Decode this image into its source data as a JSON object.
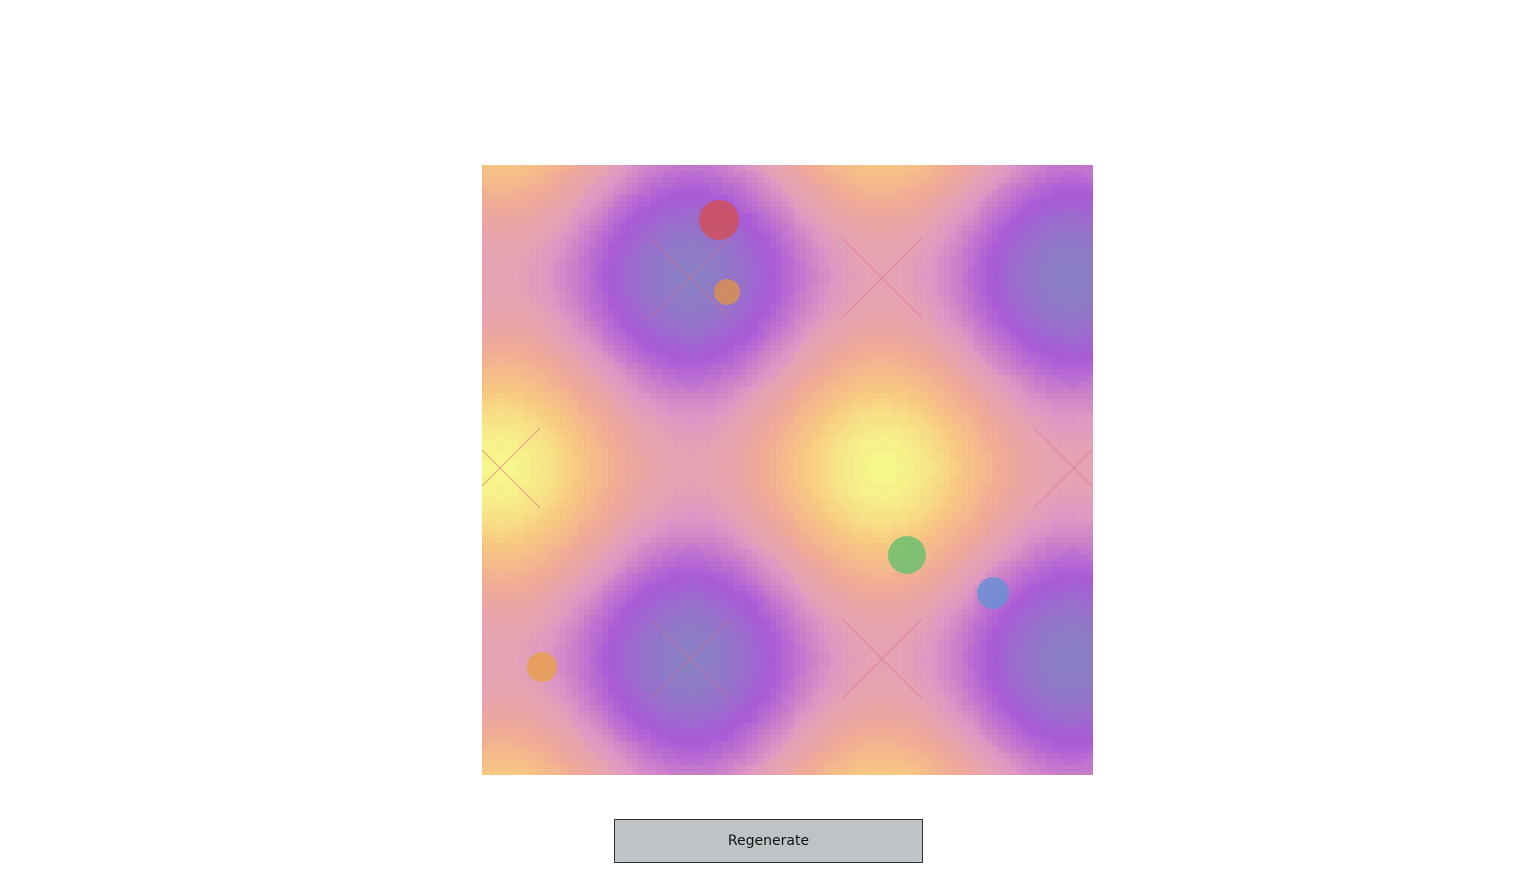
{
  "button": {
    "label": "Regenerate"
  }
}
